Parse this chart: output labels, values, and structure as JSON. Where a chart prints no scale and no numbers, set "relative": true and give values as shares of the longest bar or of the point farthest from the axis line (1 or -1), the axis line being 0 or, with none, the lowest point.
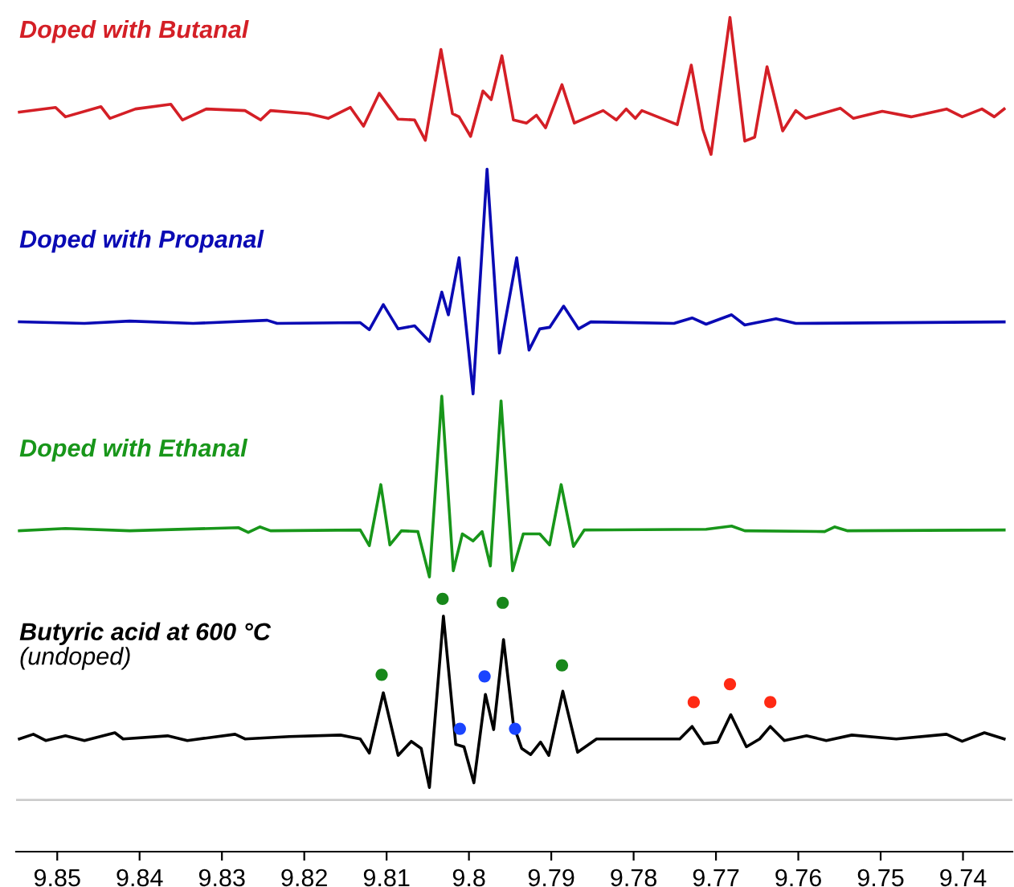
{
  "chart_data": {
    "type": "line",
    "relative": true,
    "xlim": [
      9.855,
      9.734
    ],
    "xticks": [
      9.85,
      9.84,
      9.83,
      9.82,
      9.81,
      9.8,
      9.79,
      9.78,
      9.77,
      9.76,
      9.75,
      9.74
    ],
    "annotations": [
      "(undoped)"
    ],
    "ref_lines": [
      {
        "axis": "y",
        "value": 0,
        "color": "#cccccc"
      }
    ],
    "series": [
      {
        "name": "Doped with Butanal",
        "color": "#d41f26",
        "x": [
          9.8546,
          9.8502,
          9.849,
          9.8447,
          9.8436,
          9.8405,
          9.8362,
          9.8348,
          9.8319,
          9.8272,
          9.8253,
          9.8241,
          9.8195,
          9.8171,
          9.8144,
          9.8128,
          9.8109,
          9.8086,
          9.8066,
          9.8053,
          9.8034,
          9.802,
          9.8012,
          9.7998,
          9.7983,
          9.7973,
          9.796,
          9.7946,
          9.793,
          9.7918,
          9.7907,
          9.7887,
          9.7872,
          9.7837,
          9.7821,
          9.7809,
          9.7798,
          9.779,
          9.7747,
          9.773,
          9.7716,
          9.7706,
          9.7683,
          9.7665,
          9.7653,
          9.7638,
          9.7619,
          9.7603,
          9.7591,
          9.7549,
          9.7533,
          9.7498,
          9.7463,
          9.742,
          9.7401,
          9.7377,
          9.7362,
          9.735
        ],
        "values": [
          0.879,
          0.885,
          0.873,
          0.886,
          0.871,
          0.883,
          0.889,
          0.869,
          0.883,
          0.881,
          0.869,
          0.881,
          0.877,
          0.871,
          0.885,
          0.861,
          0.903,
          0.87,
          0.869,
          0.843,
          0.959,
          0.877,
          0.873,
          0.848,
          0.906,
          0.895,
          0.951,
          0.869,
          0.865,
          0.875,
          0.859,
          0.914,
          0.865,
          0.881,
          0.869,
          0.883,
          0.871,
          0.881,
          0.863,
          0.939,
          0.857,
          0.825,
          1.0,
          0.842,
          0.847,
          0.937,
          0.855,
          0.881,
          0.871,
          0.884,
          0.871,
          0.88,
          0.873,
          0.883,
          0.873,
          0.883,
          0.873,
          0.883
        ]
      },
      {
        "name": "Doped with Propanal",
        "color": "#0a0ab4",
        "x": [
          9.8546,
          9.8467,
          9.8412,
          9.8335,
          9.8245,
          9.8233,
          9.8132,
          9.8121,
          9.8104,
          9.8086,
          9.8066,
          9.8048,
          9.8033,
          9.8025,
          9.8012,
          9.7995,
          9.7978,
          9.7963,
          9.7942,
          9.7927,
          9.7914,
          9.7902,
          9.7885,
          9.7867,
          9.7852,
          9.7751,
          9.7729,
          9.7712,
          9.7681,
          9.7665,
          9.7627,
          9.7603,
          9.735
        ],
        "values": [
          0.611,
          0.609,
          0.612,
          0.609,
          0.613,
          0.609,
          0.61,
          0.601,
          0.633,
          0.602,
          0.606,
          0.586,
          0.649,
          0.62,
          0.693,
          0.519,
          0.806,
          0.571,
          0.693,
          0.575,
          0.602,
          0.604,
          0.631,
          0.602,
          0.611,
          0.609,
          0.616,
          0.608,
          0.62,
          0.607,
          0.615,
          0.609,
          0.611
        ]
      },
      {
        "name": "Doped with Ethanal",
        "color": "#18961a",
        "x": [
          9.8546,
          9.849,
          9.8412,
          9.828,
          9.8268,
          9.8254,
          9.8241,
          9.8132,
          9.8121,
          9.8107,
          9.8096,
          9.8082,
          9.8062,
          9.8048,
          9.8033,
          9.8019,
          9.8008,
          9.7995,
          9.7984,
          9.7974,
          9.7961,
          9.7947,
          9.7934,
          9.7914,
          9.7902,
          9.7888,
          9.7873,
          9.786,
          9.7712,
          9.7681,
          9.7665,
          9.7568,
          9.7556,
          9.754,
          9.735
        ],
        "values": [
          0.344,
          0.347,
          0.344,
          0.348,
          0.342,
          0.349,
          0.344,
          0.345,
          0.325,
          0.403,
          0.326,
          0.344,
          0.343,
          0.285,
          0.516,
          0.293,
          0.34,
          0.331,
          0.343,
          0.299,
          0.51,
          0.293,
          0.34,
          0.34,
          0.326,
          0.403,
          0.324,
          0.345,
          0.346,
          0.35,
          0.344,
          0.343,
          0.349,
          0.344,
          0.345
        ]
      },
      {
        "name": "Butyric acid at 600 °C",
        "color": "#000000",
        "x": [
          9.8546,
          9.8529,
          9.8514,
          9.849,
          9.8467,
          9.843,
          9.842,
          9.8366,
          9.8342,
          9.8284,
          9.8272,
          9.8218,
          9.8156,
          9.8132,
          9.8121,
          9.8104,
          9.8086,
          9.807,
          9.8058,
          9.8048,
          9.8031,
          9.8016,
          9.8006,
          9.7994,
          9.798,
          9.797,
          9.7958,
          9.7946,
          9.7936,
          9.7925,
          9.7913,
          9.7903,
          9.7886,
          9.7868,
          9.7845,
          9.7744,
          9.7729,
          9.7715,
          9.7698,
          9.7682,
          9.7663,
          9.7647,
          9.7634,
          9.7617,
          9.759,
          9.7566,
          9.7535,
          9.7481,
          9.742,
          9.7401,
          9.7374,
          9.735
        ],
        "values": [
          0.078,
          0.084,
          0.076,
          0.082,
          0.076,
          0.086,
          0.078,
          0.082,
          0.076,
          0.084,
          0.078,
          0.081,
          0.083,
          0.078,
          0.06,
          0.137,
          0.057,
          0.075,
          0.066,
          0.016,
          0.235,
          0.071,
          0.068,
          0.022,
          0.135,
          0.09,
          0.205,
          0.096,
          0.066,
          0.058,
          0.074,
          0.057,
          0.139,
          0.061,
          0.078,
          0.078,
          0.094,
          0.072,
          0.074,
          0.109,
          0.068,
          0.078,
          0.094,
          0.076,
          0.082,
          0.076,
          0.083,
          0.078,
          0.084,
          0.075,
          0.086,
          0.078
        ]
      },
      {
        "type": "scatter",
        "color": "#17871a",
        "x": [
          9.8106,
          9.8032,
          9.7959,
          9.7887
        ],
        "values": [
          0.16,
          0.257,
          0.252,
          0.172
        ]
      },
      {
        "type": "scatter",
        "color": "#1a44ff",
        "x": [
          9.8011,
          9.7981,
          9.7944
        ],
        "values": [
          0.091,
          0.158,
          0.091
        ]
      },
      {
        "type": "scatter",
        "color": "#ff2a14",
        "x": [
          9.7727,
          9.7683,
          9.7634
        ],
        "values": [
          0.125,
          0.148,
          0.125
        ]
      }
    ]
  }
}
